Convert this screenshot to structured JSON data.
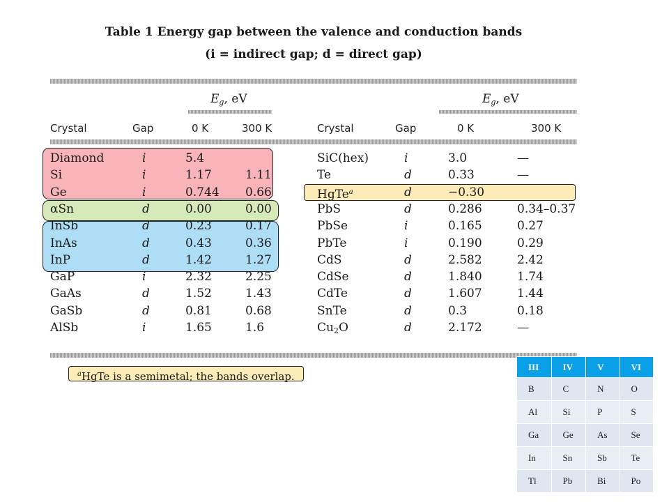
{
  "title": {
    "line1": "Table 1  Energy gap between the valence and conduction bands",
    "line2": "(i = indirect gap; d = direct gap)"
  },
  "eg_header": "E",
  "eg_sub": "g",
  "eg_unit": ", eV",
  "columns": {
    "crystal": "Crystal",
    "gap": "Gap",
    "k0": "0 K",
    "k300": "300 K"
  },
  "left_rows": [
    {
      "crystal": "Diamond",
      "gap": "i",
      "k0": "5.4",
      "k300": ""
    },
    {
      "crystal": "Si",
      "gap": "i",
      "k0": "1.17",
      "k300": "1.11"
    },
    {
      "crystal": "Ge",
      "gap": "i",
      "k0": "0.744",
      "k300": "0.66"
    },
    {
      "crystal": "αSn",
      "gap": "d",
      "k0": "0.00",
      "k300": "0.00"
    },
    {
      "crystal": "InSb",
      "gap": "d",
      "k0": "0.23",
      "k300": "0.17"
    },
    {
      "crystal": "InAs",
      "gap": "d",
      "k0": "0.43",
      "k300": "0.36"
    },
    {
      "crystal": "InP",
      "gap": "d",
      "k0": "1.42",
      "k300": "1.27"
    },
    {
      "crystal": "GaP",
      "gap": "i",
      "k0": "2.32",
      "k300": "2.25"
    },
    {
      "crystal": "GaAs",
      "gap": "d",
      "k0": "1.52",
      "k300": "1.43"
    },
    {
      "crystal": "GaSb",
      "gap": "d",
      "k0": "0.81",
      "k300": "0.68"
    },
    {
      "crystal": "AlSb",
      "gap": "i",
      "k0": "1.65",
      "k300": "1.6"
    }
  ],
  "right_rows": [
    {
      "crystal": "SiC(hex)",
      "gap": "i",
      "k0": "3.0",
      "k300": "—"
    },
    {
      "crystal": "Te",
      "gap": "d",
      "k0": "0.33",
      "k300": "—"
    },
    {
      "crystal": "HgTe",
      "sup": "a",
      "gap": "d",
      "k0": "−0.30",
      "k300": ""
    },
    {
      "crystal": "PbS",
      "gap": "d",
      "k0": "0.286",
      "k300": "0.34–0.37"
    },
    {
      "crystal": "PbSe",
      "gap": "i",
      "k0": "0.165",
      "k300": "0.27"
    },
    {
      "crystal": "PbTe",
      "gap": "i",
      "k0": "0.190",
      "k300": "0.29"
    },
    {
      "crystal": "CdS",
      "gap": "d",
      "k0": "2.582",
      "k300": "2.42"
    },
    {
      "crystal": "CdSe",
      "gap": "d",
      "k0": "1.840",
      "k300": "1.74"
    },
    {
      "crystal": "CdTe",
      "gap": "d",
      "k0": "1.607",
      "k300": "1.44"
    },
    {
      "crystal": "SnTe",
      "gap": "d",
      "k0": "0.3",
      "k300": "0.18"
    },
    {
      "crystal": "Cu",
      "sub": "2",
      "crystal_tail": "O",
      "gap": "d",
      "k0": "2.172",
      "k300": "—"
    }
  ],
  "footnote": {
    "mark": "a",
    "text": "HgTe is a semimetal; the bands overlap."
  },
  "periodic": {
    "headers": [
      "III",
      "IV",
      "V",
      "VI"
    ],
    "rows": [
      [
        "B",
        "C",
        "N",
        "O"
      ],
      [
        "Al",
        "Si",
        "P",
        "S"
      ],
      [
        "Ga",
        "Ge",
        "As",
        "Se"
      ],
      [
        "In",
        "Sn",
        "Sb",
        "Te"
      ],
      [
        "Tl",
        "Pb",
        "Bi",
        "Po"
      ]
    ]
  },
  "colors": {
    "highlight_red": "#f5828c",
    "highlight_green": "#c8e1a0",
    "highlight_blue": "#78c8f0",
    "highlight_yellow": "#fce6a0",
    "table_header_blue": "#0aa0e8"
  }
}
